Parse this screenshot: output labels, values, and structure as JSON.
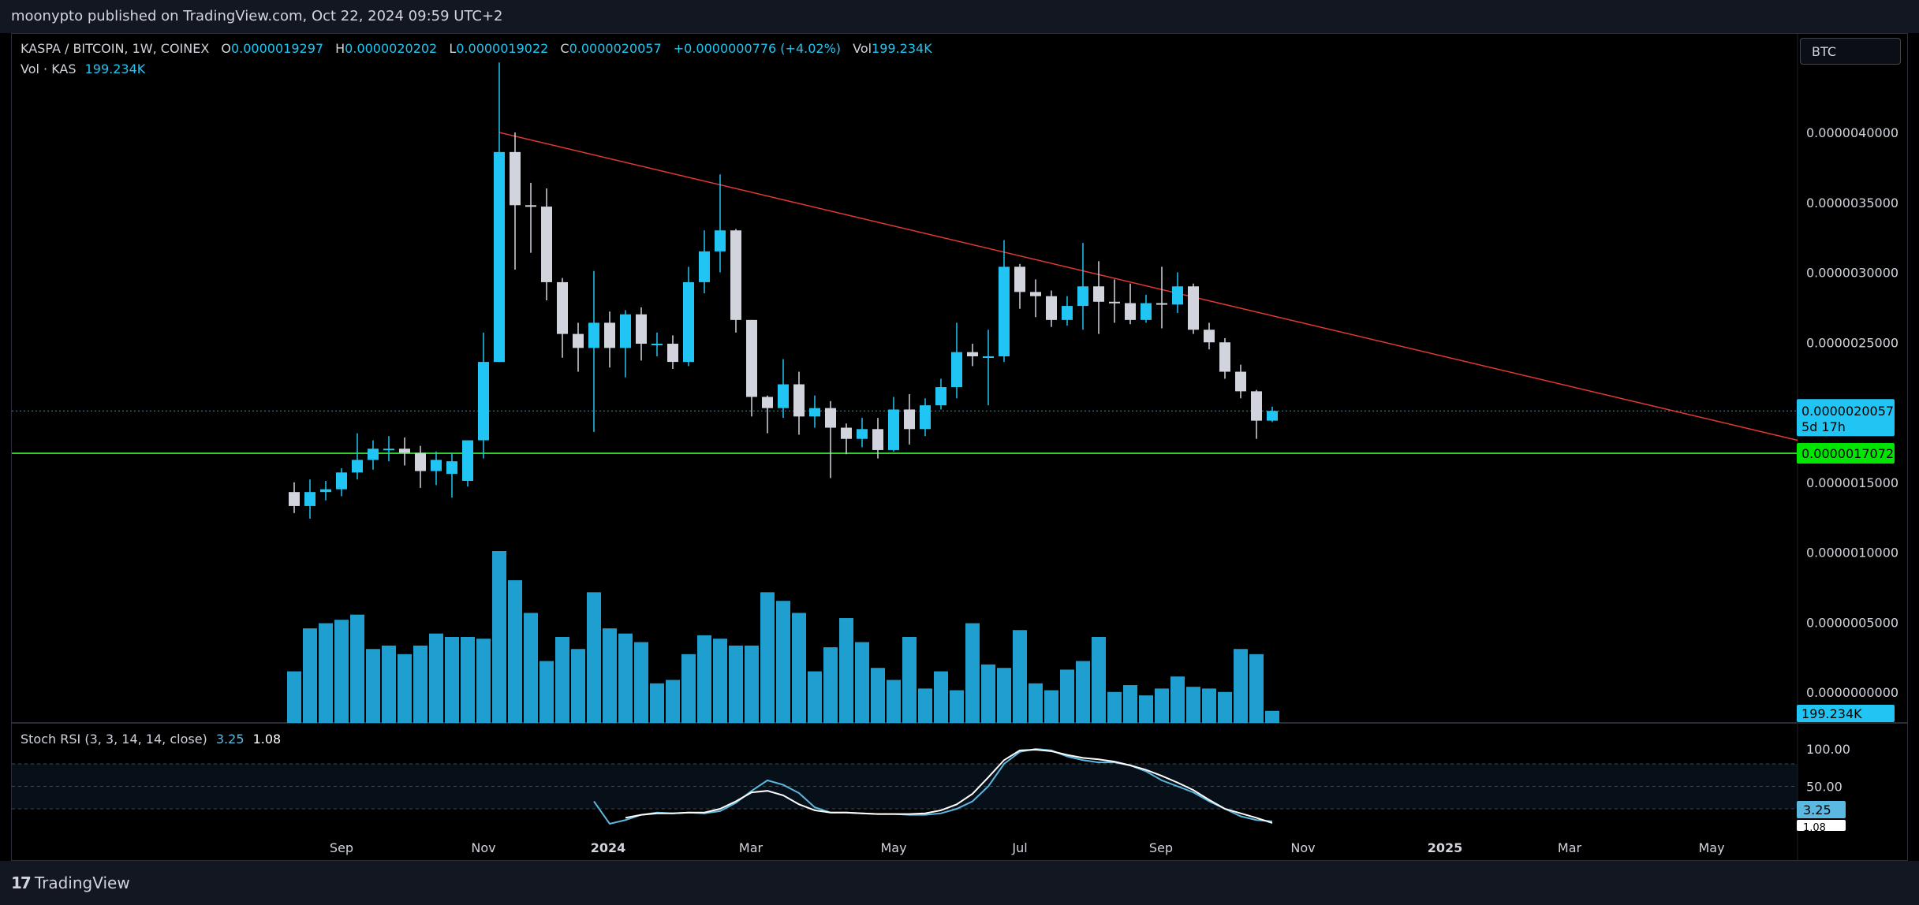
{
  "header": {
    "published_text": "moonypto published on TradingView.com, Oct 22, 2024 09:59 UTC+2"
  },
  "footer": {
    "brand": "TradingView",
    "logo_text": "17"
  },
  "legend": {
    "symbol": "KASPA / BITCOIN, 1W, COINEX",
    "o_label": "O",
    "o_value": "0.0000019297",
    "h_label": "H",
    "h_value": "0.0000020202",
    "l_label": "L",
    "l_value": "0.0000019022",
    "c_label": "C",
    "c_value": "0.0000020057",
    "change": "+0.0000000776 (+4.02%)",
    "vol_label": "Vol",
    "vol_value": "199.234K"
  },
  "volume_legend": {
    "label": "Vol · KAS",
    "value": "199.234K"
  },
  "rsi_legend": {
    "label": "Stoch RSI (3, 3, 14, 14, close)",
    "k": "3.25",
    "d": "1.08"
  },
  "currency_button": "BTC",
  "colors": {
    "up": "#21c5f3",
    "down": "#d1d4dc",
    "volume": "#1e9fd0",
    "trendline": "#e53935",
    "support": "#2fcf2f",
    "k_line": "#5bb8e0",
    "d_line": "#ffffff"
  },
  "chart_data": {
    "type": "candlestick",
    "price_axis": {
      "ticks": [
        "0.0000040000",
        "0.0000035000",
        "0.0000030000",
        "0.0000025000",
        "0.0000015000",
        "0.0000010000",
        "0.0000005000",
        "0.0000000000"
      ],
      "min": 0.0,
      "max": 4.6e-06
    },
    "time_axis": {
      "labels": [
        "Sep",
        "Nov",
        "2024",
        "Mar",
        "May",
        "Jul",
        "Sep",
        "Nov",
        "2025",
        "Mar",
        "May"
      ]
    },
    "last_price_label": "0.0000020057",
    "countdown_label": "5d 17h",
    "support_label": "0.0000017072",
    "volume_label": "199.234K",
    "support_level": 1.7072e-06,
    "trendline": {
      "from": {
        "week": 13,
        "price": 4e-06
      },
      "to": {
        "week": 95,
        "price": 1.8e-06
      }
    },
    "weeks_total": 97,
    "candles": [
      [
        1.43e-06,
        1.33e-06,
        1.5e-06,
        1.28e-06
      ],
      [
        1.33e-06,
        1.43e-06,
        1.52e-06,
        1.24e-06
      ],
      [
        1.43e-06,
        1.45e-06,
        1.51e-06,
        1.37e-06
      ],
      [
        1.45e-06,
        1.57e-06,
        1.6e-06,
        1.4e-06
      ],
      [
        1.57e-06,
        1.66e-06,
        1.85e-06,
        1.52e-06
      ],
      [
        1.66e-06,
        1.74e-06,
        1.8e-06,
        1.59e-06
      ],
      [
        1.74e-06,
        1.74e-06,
        1.83e-06,
        1.65e-06
      ],
      [
        1.74e-06,
        1.71e-06,
        1.82e-06,
        1.62e-06
      ],
      [
        1.71e-06,
        1.58e-06,
        1.76e-06,
        1.46e-06
      ],
      [
        1.58e-06,
        1.66e-06,
        1.72e-06,
        1.48e-06
      ],
      [
        1.56e-06,
        1.65e-06,
        1.71e-06,
        1.39e-06
      ],
      [
        1.51e-06,
        1.8e-06,
        1.8e-06,
        1.47e-06
      ],
      [
        1.8e-06,
        2.36e-06,
        2.57e-06,
        1.67e-06
      ],
      [
        2.36e-06,
        3.86e-06,
        4.5e-06,
        2.36e-06
      ],
      [
        3.86e-06,
        3.48e-06,
        4e-06,
        3.02e-06
      ],
      [
        3.48e-06,
        3.47e-06,
        3.64e-06,
        3.14e-06
      ],
      [
        3.47e-06,
        2.93e-06,
        3.6e-06,
        2.8e-06
      ],
      [
        2.93e-06,
        2.56e-06,
        2.96e-06,
        2.39e-06
      ],
      [
        2.56e-06,
        2.46e-06,
        2.64e-06,
        2.29e-06
      ],
      [
        2.46e-06,
        2.64e-06,
        3.01e-06,
        1.86e-06
      ],
      [
        2.64e-06,
        2.46e-06,
        2.72e-06,
        2.32e-06
      ],
      [
        2.46e-06,
        2.7e-06,
        2.73e-06,
        2.25e-06
      ],
      [
        2.7e-06,
        2.49e-06,
        2.75e-06,
        2.37e-06
      ],
      [
        2.49e-06,
        2.49e-06,
        2.57e-06,
        2.4e-06
      ],
      [
        2.49e-06,
        2.36e-06,
        2.55e-06,
        2.31e-06
      ],
      [
        2.36e-06,
        2.93e-06,
        3.04e-06,
        2.33e-06
      ],
      [
        2.93e-06,
        3.15e-06,
        3.3e-06,
        2.85e-06
      ],
      [
        3.15e-06,
        3.3e-06,
        3.7e-06,
        3e-06
      ],
      [
        3.3e-06,
        2.66e-06,
        3.31e-06,
        2.57e-06
      ],
      [
        2.66e-06,
        2.11e-06,
        2.66e-06,
        1.97e-06
      ],
      [
        2.11e-06,
        2.03e-06,
        2.12e-06,
        1.85e-06
      ],
      [
        2.03e-06,
        2.2e-06,
        2.38e-06,
        1.96e-06
      ],
      [
        2.2e-06,
        1.97e-06,
        2.29e-06,
        1.84e-06
      ],
      [
        1.97e-06,
        2.03e-06,
        2.12e-06,
        1.89e-06
      ],
      [
        2.03e-06,
        1.89e-06,
        2.08e-06,
        1.53e-06
      ],
      [
        1.89e-06,
        1.81e-06,
        1.92e-06,
        1.7e-06
      ],
      [
        1.81e-06,
        1.88e-06,
        1.96e-06,
        1.75e-06
      ],
      [
        1.88e-06,
        1.73e-06,
        1.96e-06,
        1.67e-06
      ],
      [
        1.73e-06,
        2.02e-06,
        2.11e-06,
        1.72e-06
      ],
      [
        2.02e-06,
        1.88e-06,
        2.13e-06,
        1.77e-06
      ],
      [
        1.88e-06,
        2.05e-06,
        2.1e-06,
        1.83e-06
      ],
      [
        2.05e-06,
        2.18e-06,
        2.24e-06,
        2.02e-06
      ],
      [
        2.18e-06,
        2.43e-06,
        2.64e-06,
        2.1e-06
      ],
      [
        2.43e-06,
        2.4e-06,
        2.49e-06,
        2.33e-06
      ],
      [
        2.4e-06,
        2.4e-06,
        2.59e-06,
        2.05e-06
      ],
      [
        2.4e-06,
        3.04e-06,
        3.23e-06,
        2.36e-06
      ],
      [
        3.04e-06,
        2.86e-06,
        3.06e-06,
        2.74e-06
      ],
      [
        2.86e-06,
        2.83e-06,
        2.95e-06,
        2.68e-06
      ],
      [
        2.83e-06,
        2.66e-06,
        2.87e-06,
        2.61e-06
      ],
      [
        2.66e-06,
        2.76e-06,
        2.83e-06,
        2.62e-06
      ],
      [
        2.76e-06,
        2.9e-06,
        3.21e-06,
        2.59e-06
      ],
      [
        2.9e-06,
        2.79e-06,
        3.08e-06,
        2.56e-06
      ],
      [
        2.79e-06,
        2.78e-06,
        2.95e-06,
        2.64e-06
      ],
      [
        2.78e-06,
        2.66e-06,
        2.92e-06,
        2.63e-06
      ],
      [
        2.66e-06,
        2.78e-06,
        2.84e-06,
        2.64e-06
      ],
      [
        2.78e-06,
        2.77e-06,
        3.04e-06,
        2.6e-06
      ],
      [
        2.77e-06,
        2.9e-06,
        3e-06,
        2.71e-06
      ],
      [
        2.9e-06,
        2.59e-06,
        2.92e-06,
        2.56e-06
      ],
      [
        2.59e-06,
        2.5e-06,
        2.64e-06,
        2.45e-06
      ],
      [
        2.5e-06,
        2.29e-06,
        2.53e-06,
        2.24e-06
      ],
      [
        2.29e-06,
        2.15e-06,
        2.34e-06,
        2.1e-06
      ],
      [
        2.15e-06,
        1.94e-06,
        2.16e-06,
        1.81e-06
      ],
      [
        1.94e-06,
        2.01e-06,
        2.04e-06,
        1.93e-06
      ]
    ],
    "volume": [
      0.3,
      0.55,
      0.58,
      0.6,
      0.63,
      0.43,
      0.45,
      0.4,
      0.45,
      0.52,
      0.5,
      0.5,
      0.49,
      1.0,
      0.83,
      0.64,
      0.36,
      0.5,
      0.43,
      0.76,
      0.55,
      0.52,
      0.47,
      0.23,
      0.25,
      0.4,
      0.51,
      0.49,
      0.45,
      0.45,
      0.76,
      0.71,
      0.64,
      0.3,
      0.44,
      0.61,
      0.47,
      0.32,
      0.25,
      0.5,
      0.2,
      0.3,
      0.19,
      0.58,
      0.34,
      0.32,
      0.54,
      0.23,
      0.19,
      0.31,
      0.36,
      0.5,
      0.18,
      0.22,
      0.16,
      0.2,
      0.27,
      0.21,
      0.2,
      0.18,
      0.43,
      0.4,
      0.07
    ],
    "stoch_k": [
      30,
      0,
      5,
      12,
      15,
      14,
      15,
      14,
      17,
      28,
      44,
      58,
      52,
      41,
      22,
      15,
      15,
      14,
      13,
      13,
      12,
      12,
      14,
      20,
      30,
      50,
      80,
      96,
      100,
      98,
      90,
      85,
      82,
      82,
      78,
      70,
      58,
      50,
      42,
      30,
      20,
      10,
      5,
      3.25
    ],
    "stoch_d": [
      10,
      2,
      8,
      12,
      14,
      14,
      15,
      15,
      20,
      30,
      42,
      44,
      38,
      26,
      18,
      15,
      15,
      14,
      13,
      13,
      13,
      14,
      18,
      26,
      40,
      62,
      85,
      98,
      99,
      97,
      92,
      88,
      86,
      83,
      78,
      72,
      64,
      55,
      45,
      32,
      20,
      14,
      8,
      1.08
    ],
    "rsi_axis": {
      "ticks": [
        "100.00",
        "50.00"
      ],
      "k_label": "3.25",
      "d_label": "1.08"
    }
  }
}
